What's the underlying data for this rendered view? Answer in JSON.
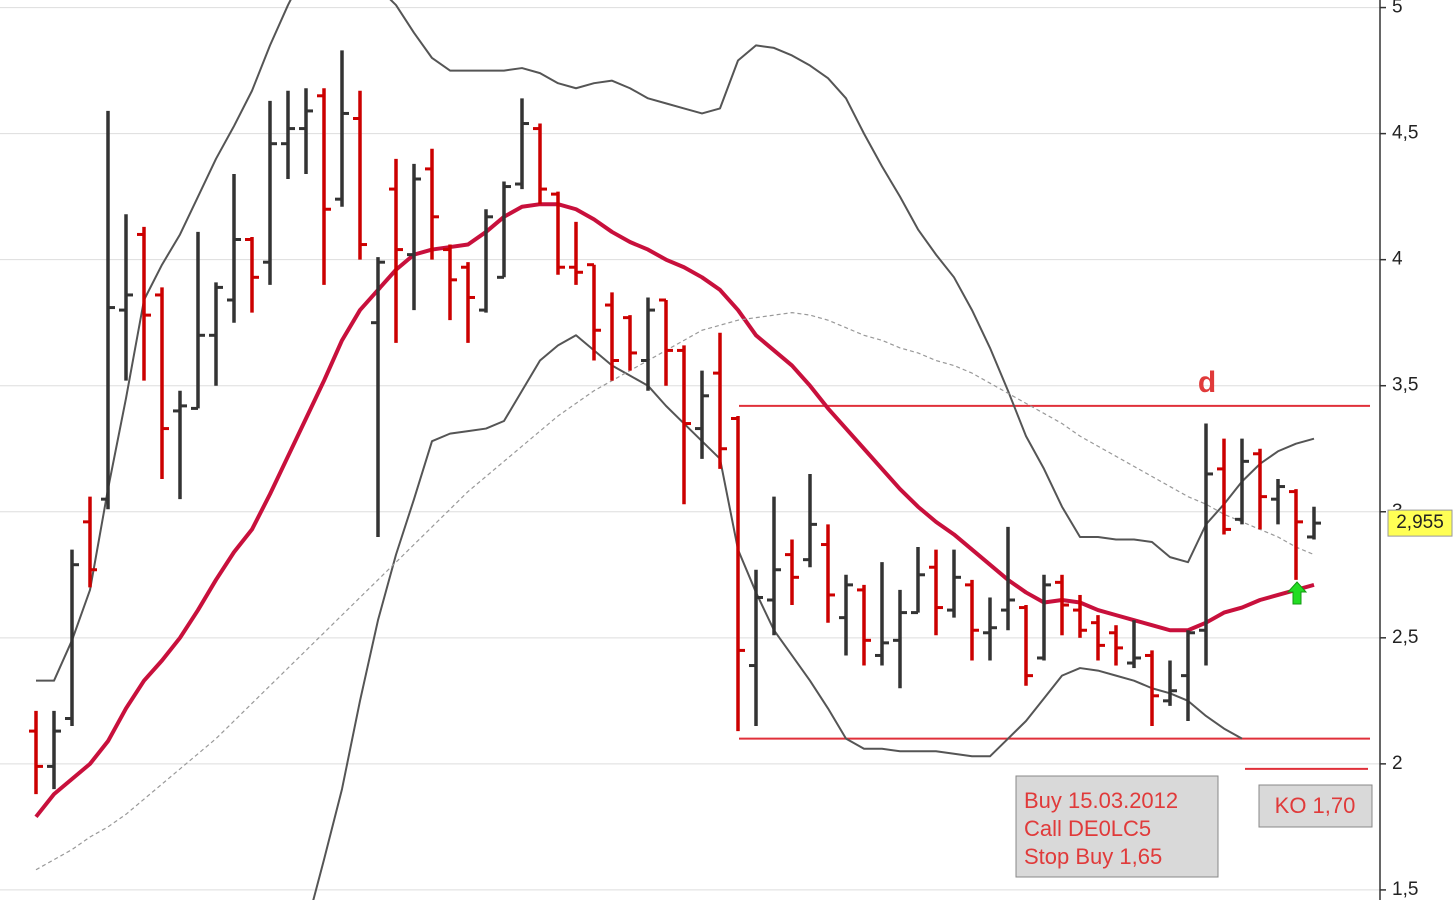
{
  "chart_data": {
    "type": "ohlc",
    "up_color": "#333333",
    "down_color": "#cc0000",
    "open": [
      2.13,
      1.99,
      2.18,
      2.96,
      3.05,
      3.8,
      4.1,
      3.86,
      3.4,
      3.41,
      3.7,
      3.84,
      4.08,
      3.99,
      4.46,
      4.52,
      4.65,
      4.24,
      4.56,
      3.75,
      4.28,
      4.02,
      4.36,
      4.04,
      3.97,
      3.8,
      3.93,
      4.3,
      4.52,
      4.26,
      3.97,
      3.98,
      3.82,
      3.77,
      3.6,
      3.84,
      3.64,
      3.33,
      3.55,
      3.37,
      2.39,
      2.65,
      2.83,
      2.81,
      2.87,
      2.58,
      2.69,
      2.43,
      2.49,
      2.6,
      2.78,
      2.61,
      2.71,
      2.52,
      2.61,
      2.62,
      2.42,
      2.72,
      2.61,
      2.56,
      2.52,
      2.4,
      2.43,
      2.25,
      2.35,
      2.53,
      3.17,
      2.97,
      3.23,
      3.05,
      3.08,
      2.9
    ],
    "high": [
      2.21,
      2.21,
      2.85,
      3.06,
      4.59,
      4.18,
      4.13,
      3.89,
      3.48,
      4.11,
      3.91,
      4.34,
      4.09,
      4.63,
      4.67,
      4.68,
      4.68,
      4.83,
      4.67,
      4.01,
      4.4,
      4.38,
      4.44,
      4.06,
      3.99,
      4.2,
      4.31,
      4.64,
      4.54,
      4.27,
      4.15,
      3.98,
      3.87,
      3.78,
      3.85,
      3.84,
      3.66,
      3.56,
      3.71,
      3.38,
      2.77,
      3.06,
      2.89,
      3.15,
      2.95,
      2.75,
      2.71,
      2.8,
      2.69,
      2.86,
      2.85,
      2.85,
      2.73,
      2.66,
      2.94,
      2.63,
      2.75,
      2.75,
      2.67,
      2.59,
      2.55,
      2.57,
      2.45,
      2.41,
      2.53,
      3.35,
      3.29,
      3.29,
      3.25,
      3.13,
      3.09,
      3.02
    ],
    "low": [
      1.88,
      1.9,
      2.15,
      2.7,
      3.01,
      3.52,
      3.52,
      3.13,
      3.05,
      3.41,
      3.5,
      3.75,
      3.79,
      3.9,
      4.32,
      4.34,
      3.9,
      4.21,
      4.0,
      2.9,
      3.67,
      3.8,
      4.0,
      3.76,
      3.67,
      3.79,
      3.93,
      4.28,
      4.22,
      3.94,
      3.9,
      3.6,
      3.52,
      3.56,
      3.48,
      3.5,
      3.03,
      3.21,
      3.17,
      2.13,
      2.15,
      2.51,
      2.63,
      2.78,
      2.56,
      2.43,
      2.39,
      2.39,
      2.3,
      2.6,
      2.51,
      2.58,
      2.41,
      2.41,
      2.53,
      2.31,
      2.41,
      2.51,
      2.5,
      2.41,
      2.39,
      2.38,
      2.15,
      2.23,
      2.17,
      2.39,
      2.91,
      2.95,
      2.93,
      2.95,
      2.73,
      2.89
    ],
    "close": [
      1.99,
      2.13,
      2.79,
      2.77,
      3.81,
      3.86,
      3.78,
      3.33,
      3.42,
      3.7,
      3.89,
      4.08,
      3.93,
      4.46,
      4.52,
      4.59,
      4.2,
      4.58,
      4.06,
      3.99,
      4.04,
      4.32,
      4.17,
      3.92,
      3.85,
      4.17,
      4.29,
      4.54,
      4.28,
      3.97,
      3.95,
      3.72,
      3.6,
      3.63,
      3.8,
      3.64,
      3.35,
      3.46,
      3.25,
      2.45,
      2.66,
      2.77,
      2.74,
      2.95,
      2.67,
      2.71,
      2.49,
      2.48,
      2.6,
      2.75,
      2.62,
      2.74,
      2.53,
      2.54,
      2.65,
      2.35,
      2.71,
      2.63,
      2.53,
      2.47,
      2.46,
      2.42,
      2.27,
      2.29,
      2.52,
      3.15,
      2.93,
      3.2,
      3.06,
      3.1,
      2.96,
      2.955
    ],
    "overlays": [
      {
        "color": "#c8103c",
        "style": "thick",
        "values": [
          1.79,
          1.88,
          1.94,
          2.0,
          2.09,
          2.22,
          2.33,
          2.41,
          2.5,
          2.61,
          2.73,
          2.84,
          2.93,
          3.07,
          3.22,
          3.37,
          3.52,
          3.68,
          3.8,
          3.88,
          3.96,
          4.02,
          4.04,
          4.05,
          4.06,
          4.11,
          4.17,
          4.21,
          4.22,
          4.22,
          4.2,
          4.16,
          4.11,
          4.07,
          4.04,
          4.0,
          3.97,
          3.93,
          3.88,
          3.8,
          3.7,
          3.64,
          3.58,
          3.5,
          3.41,
          3.33,
          3.25,
          3.17,
          3.09,
          3.02,
          2.96,
          2.91,
          2.85,
          2.79,
          2.73,
          2.68,
          2.64,
          2.65,
          2.64,
          2.61,
          2.59,
          2.57,
          2.55,
          2.53,
          2.53,
          2.56,
          2.6,
          2.62,
          2.65,
          2.67,
          2.69,
          2.71
        ]
      },
      {
        "color": "#555555",
        "style": "thin",
        "values": [
          2.33,
          2.33,
          2.49,
          2.69,
          3.09,
          3.45,
          3.84,
          3.98,
          4.1,
          4.25,
          4.4,
          4.53,
          4.67,
          4.85,
          5.01,
          5.15,
          5.2,
          5.2,
          5.15,
          5.08,
          5.01,
          4.9,
          4.8,
          4.75,
          4.75,
          4.75,
          4.75,
          4.76,
          4.74,
          4.7,
          4.68,
          4.7,
          4.71,
          4.68,
          4.64,
          4.62,
          4.6,
          4.58,
          4.6,
          4.79,
          4.85,
          4.84,
          4.81,
          4.77,
          4.72,
          4.64,
          4.5,
          4.37,
          4.25,
          4.12,
          4.02,
          3.93,
          3.8,
          3.65,
          3.48,
          3.3,
          3.17,
          3.02,
          2.9,
          2.9,
          2.89,
          2.89,
          2.88,
          2.82,
          2.8,
          2.95,
          3.03,
          3.12,
          3.19,
          3.24,
          3.27,
          3.29
        ]
      },
      {
        "color": "#555555",
        "style": "thin",
        "values": [
          null,
          null,
          null,
          null,
          null,
          null,
          null,
          null,
          null,
          null,
          null,
          null,
          null,
          null,
          null,
          1.35,
          1.62,
          1.9,
          2.25,
          2.57,
          2.83,
          3.05,
          3.28,
          3.31,
          3.32,
          3.33,
          3.36,
          3.48,
          3.6,
          3.66,
          3.7,
          3.64,
          3.58,
          3.54,
          3.5,
          3.42,
          3.35,
          3.28,
          3.21,
          2.85,
          2.68,
          2.53,
          2.43,
          2.33,
          2.22,
          2.1,
          2.06,
          2.06,
          2.05,
          2.05,
          2.05,
          2.04,
          2.03,
          2.03,
          2.1,
          2.17,
          2.26,
          2.35,
          2.38,
          2.37,
          2.35,
          2.33,
          2.3,
          2.28,
          2.25,
          2.19,
          2.14,
          2.1,
          null,
          null,
          null,
          null
        ]
      },
      {
        "color": "#999999",
        "style": "dashed",
        "values": [
          1.58,
          1.62,
          1.66,
          1.71,
          1.75,
          1.8,
          1.86,
          1.92,
          1.98,
          2.04,
          2.1,
          2.17,
          2.24,
          2.31,
          2.38,
          2.45,
          2.52,
          2.59,
          2.66,
          2.73,
          2.8,
          2.87,
          2.94,
          3.01,
          3.08,
          3.14,
          3.2,
          3.26,
          3.32,
          3.38,
          3.43,
          3.48,
          3.52,
          3.56,
          3.6,
          3.64,
          3.68,
          3.72,
          3.74,
          3.76,
          3.77,
          3.78,
          3.79,
          3.78,
          3.76,
          3.73,
          3.7,
          3.68,
          3.65,
          3.63,
          3.6,
          3.58,
          3.55,
          3.51,
          3.47,
          3.43,
          3.39,
          3.35,
          3.3,
          3.26,
          3.22,
          3.18,
          3.14,
          3.1,
          3.06,
          3.03,
          2.99,
          2.96,
          2.93,
          2.9,
          2.86,
          2.83
        ]
      }
    ],
    "levels": [
      {
        "value": 3.42,
        "color": "#e0303a"
      },
      {
        "value": 2.1,
        "color": "#e0303a"
      },
      {
        "value": 1.98,
        "color": "#e0303a"
      }
    ],
    "ylim": [
      1.46,
      5.03
    ],
    "yticks": [
      {
        "value": 1.5,
        "label": "1,5"
      },
      2,
      {
        "value": 2.5,
        "label": "2,5"
      },
      3,
      {
        "value": 3.5,
        "label": "3,5"
      },
      4,
      {
        "value": 4.5,
        "label": "4,5"
      },
      5
    ],
    "grid": true,
    "last_price": {
      "value": 2.955,
      "label": "2,955"
    },
    "annotations": {
      "pattern": "d",
      "buy": [
        "Buy 15.03.2012",
        "Call DE0LC5",
        "Stop Buy 1,65"
      ],
      "ko": "KO 1,70"
    }
  }
}
